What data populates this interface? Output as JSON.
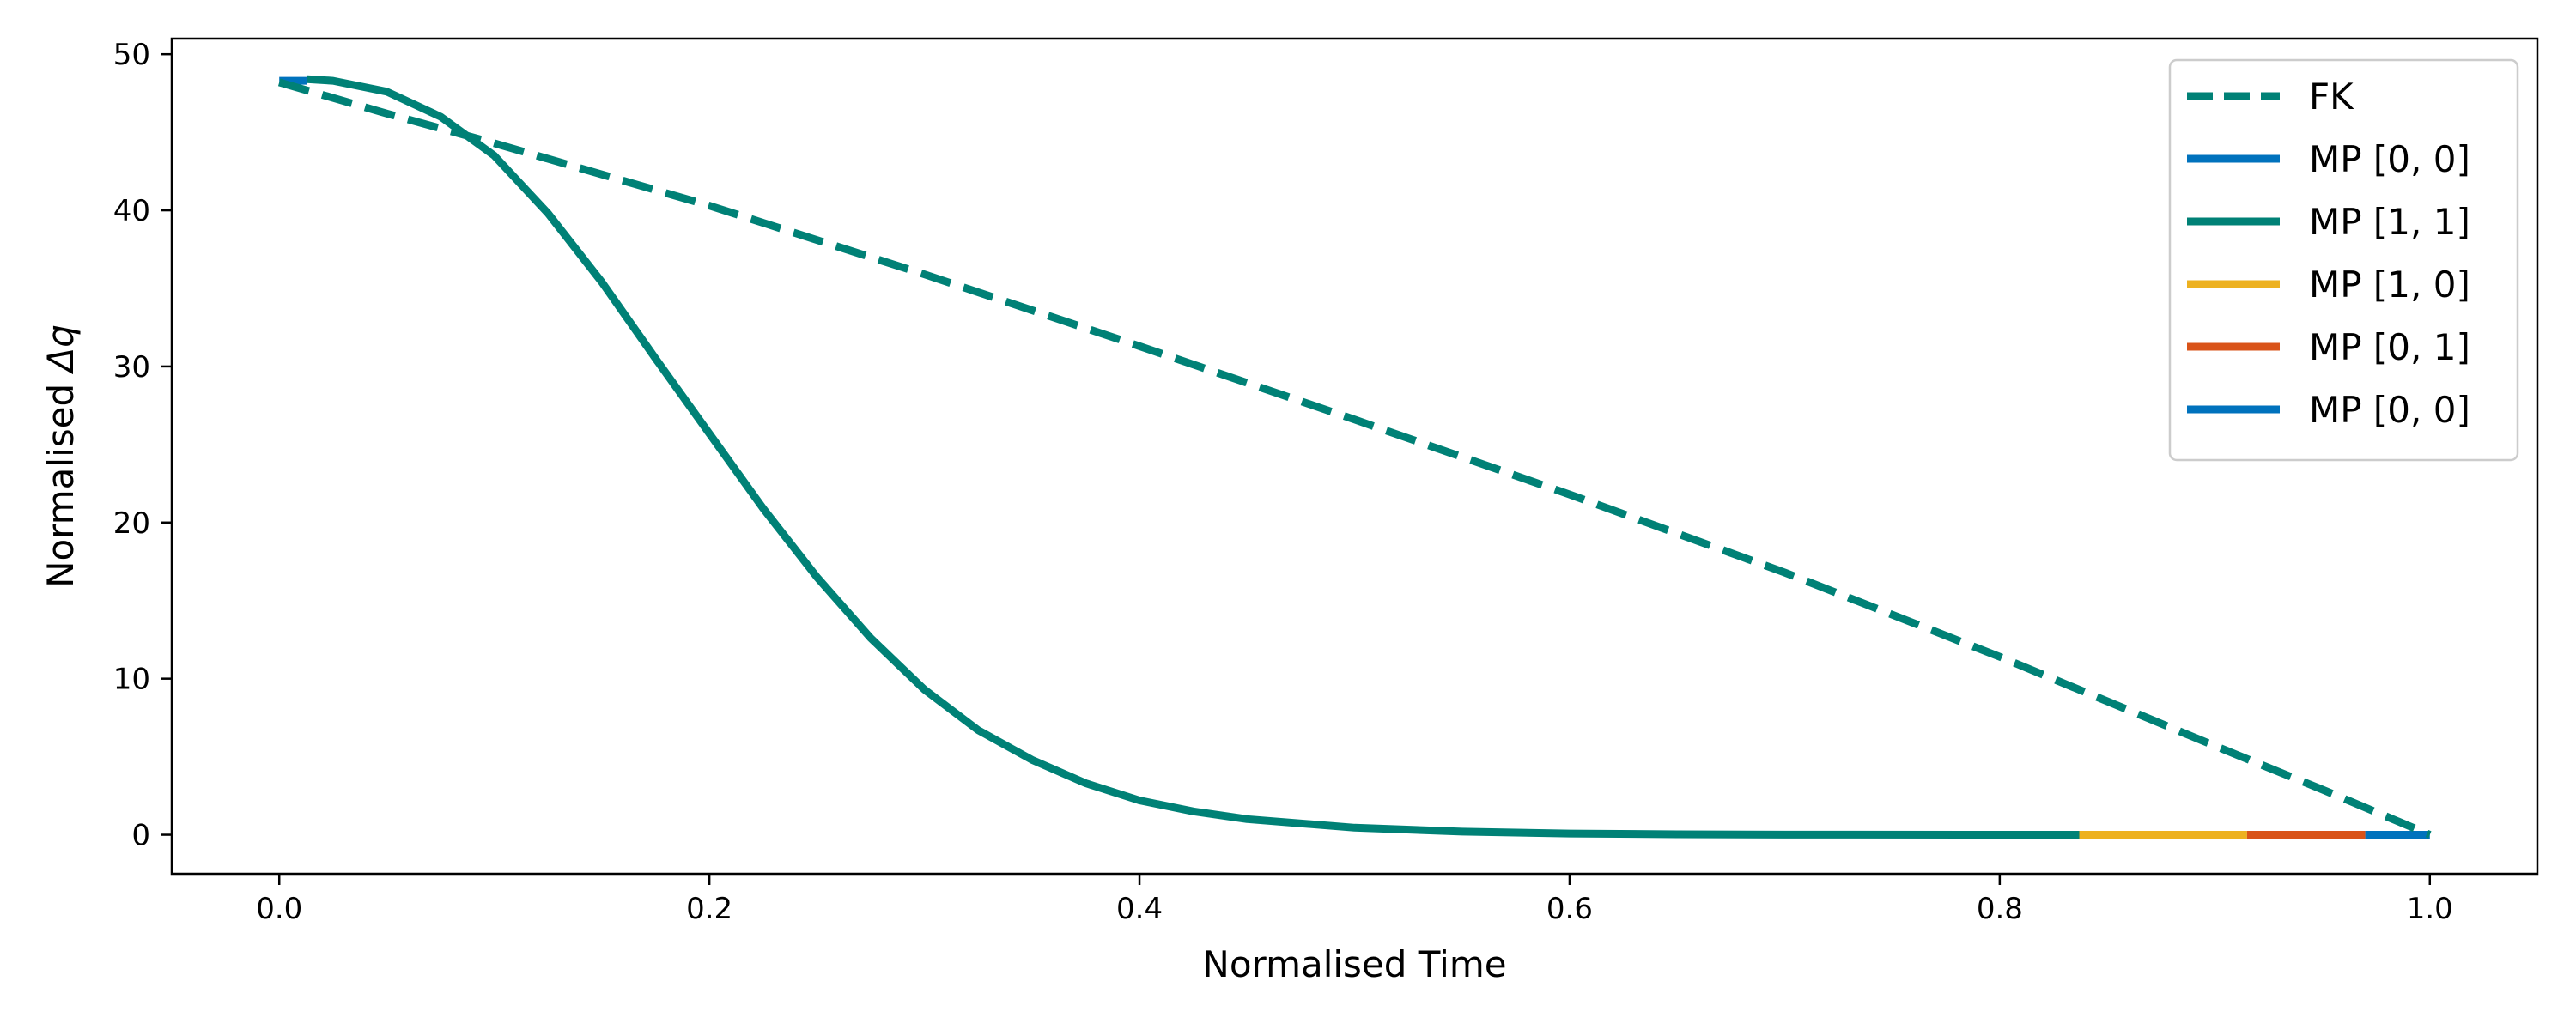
{
  "chart_data": {
    "type": "line",
    "xlabel": "Normalised Time",
    "ylabel_prefix": "Normalised ",
    "ylabel_symbol": "Δq",
    "xlim": [
      -0.05,
      1.05
    ],
    "ylim": [
      -2.5,
      51
    ],
    "xticks": [
      0.0,
      0.2,
      0.4,
      0.6,
      0.8,
      1.0
    ],
    "xtick_labels": [
      "0.0",
      "0.2",
      "0.4",
      "0.6",
      "0.8",
      "1.0"
    ],
    "yticks": [
      0,
      10,
      20,
      30,
      40,
      50
    ],
    "ytick_labels": [
      "0",
      "10",
      "20",
      "30",
      "40",
      "50"
    ],
    "grid": false,
    "legend_position": "top-right",
    "series": [
      {
        "name": "FK",
        "color": "#008176",
        "style": "dashed",
        "x": [
          0.0,
          0.05,
          0.1,
          0.2,
          0.3,
          0.4,
          0.5,
          0.6,
          0.7,
          0.8,
          0.9,
          0.95,
          1.0
        ],
        "y": [
          48.2,
          46.2,
          44.3,
          40.3,
          35.9,
          31.3,
          26.6,
          21.8,
          16.8,
          11.4,
          5.7,
          2.9,
          0.0
        ]
      },
      {
        "name": "MP [0, 0]",
        "color": "#0072BD",
        "style": "solid",
        "x": [
          0.0,
          0.013
        ],
        "y": [
          48.3,
          48.3
        ]
      },
      {
        "name": "MP [1, 1]",
        "color": "#008176",
        "style": "solid",
        "x": [
          0.013,
          0.025,
          0.05,
          0.075,
          0.1,
          0.125,
          0.15,
          0.175,
          0.2,
          0.225,
          0.25,
          0.275,
          0.3,
          0.325,
          0.35,
          0.375,
          0.4,
          0.425,
          0.45,
          0.5,
          0.55,
          0.6,
          0.65,
          0.7,
          0.8,
          0.837
        ],
        "y": [
          48.4,
          48.3,
          47.6,
          46.0,
          43.5,
          39.8,
          35.4,
          30.5,
          25.7,
          20.9,
          16.5,
          12.6,
          9.3,
          6.7,
          4.8,
          3.3,
          2.2,
          1.5,
          1.0,
          0.45,
          0.2,
          0.08,
          0.03,
          0.01,
          0.0,
          0.0
        ]
      },
      {
        "name": "MP [1, 0]",
        "color": "#EDB120",
        "style": "solid",
        "x": [
          0.837,
          0.915
        ],
        "y": [
          0.0,
          0.0
        ]
      },
      {
        "name": "MP [0, 1]",
        "color": "#D95319",
        "style": "solid",
        "x": [
          0.915,
          0.97
        ],
        "y": [
          0.0,
          0.0
        ]
      },
      {
        "name": "MP [0, 0]",
        "color": "#0072BD",
        "style": "solid",
        "x": [
          0.97,
          1.0
        ],
        "y": [
          0.0,
          0.0
        ]
      }
    ]
  }
}
